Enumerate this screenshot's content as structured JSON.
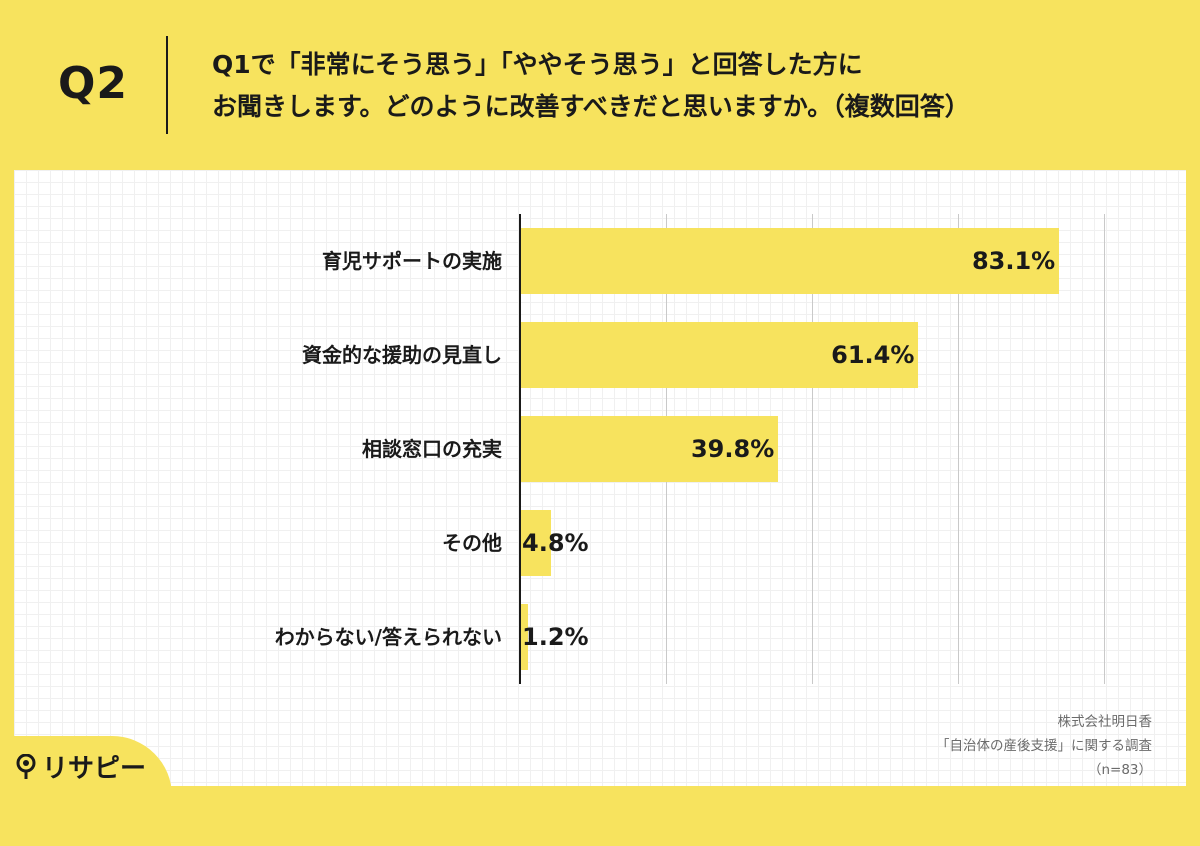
{
  "header": {
    "q_number": "Q2",
    "question_line1": "Q1で「非常にそう思う」「ややそう思う」と回答した方に",
    "question_line2": "お聞きします。どのように改善すべきだと思いますか。（複数回答）"
  },
  "chart_data": {
    "type": "bar",
    "orientation": "horizontal",
    "categories": [
      "育児サポートの実施",
      "資金的な援助の見直し",
      "相談窓口の充実",
      "その他",
      "わからない/答えられない"
    ],
    "values": [
      83.1,
      61.4,
      39.8,
      4.8,
      1.2
    ],
    "value_labels": [
      "83.1%",
      "61.4%",
      "39.8%",
      "4.8%",
      "1.2%"
    ],
    "unit": "%",
    "xlim": [
      0,
      90
    ],
    "gridlines": [
      0,
      22.5,
      45,
      67.5,
      90
    ],
    "bar_color": "#f7e35e",
    "grid": true
  },
  "source": {
    "company": "株式会社明日香",
    "survey": "「自治体の産後支援」に関する調査",
    "sample": "（n=83）"
  },
  "brand": {
    "name": "リサピー",
    "icon": "location-pin-icon"
  },
  "colors": {
    "background": "#f7e35e",
    "panel": "#ffffff",
    "bar": "#f7e35e",
    "text": "#1a1a1a"
  }
}
